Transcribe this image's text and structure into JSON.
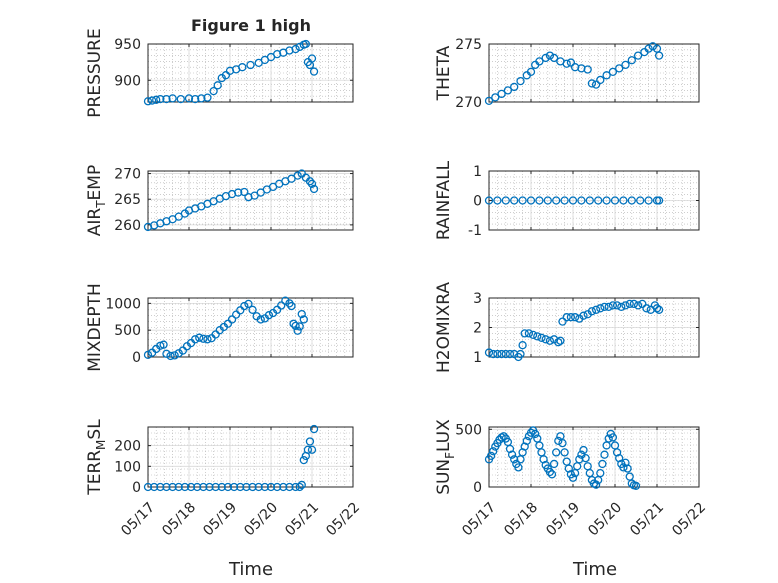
{
  "figure": {
    "title": "Figure 1 high",
    "xlabel": "Time"
  },
  "style": {
    "series_color": "#0072BD",
    "axis_color": "#262626",
    "grid_color": "#b0b0b0",
    "background": "#ffffff"
  },
  "chart_data": [
    {
      "type": "scatter",
      "title": "Figure 1 high",
      "ylabel": "PRESSURE",
      "ylabel_sub": "",
      "xlim": [
        0,
        5
      ],
      "ylim": [
        870,
        950
      ],
      "yticks": [
        900,
        950
      ],
      "xticks": [
        0,
        1,
        2,
        3,
        4,
        5
      ],
      "xticklabels": [],
      "grid": true,
      "minor_grid": true,
      "points": [
        [
          0,
          871
        ],
        [
          0.1,
          872
        ],
        [
          0.2,
          873
        ],
        [
          0.3,
          874
        ],
        [
          0.45,
          874
        ],
        [
          0.6,
          875
        ],
        [
          0.8,
          874
        ],
        [
          1,
          875
        ],
        [
          1.15,
          874
        ],
        [
          1.3,
          875
        ],
        [
          1.45,
          876
        ],
        [
          1.6,
          885
        ],
        [
          1.7,
          893
        ],
        [
          1.8,
          903
        ],
        [
          1.9,
          907
        ],
        [
          2.0,
          913
        ],
        [
          2.15,
          915
        ],
        [
          2.3,
          918
        ],
        [
          2.5,
          921
        ],
        [
          2.7,
          924
        ],
        [
          2.85,
          928
        ],
        [
          3.0,
          932
        ],
        [
          3.15,
          936
        ],
        [
          3.3,
          938
        ],
        [
          3.45,
          941
        ],
        [
          3.6,
          943
        ],
        [
          3.7,
          946
        ],
        [
          3.8,
          949
        ],
        [
          3.85,
          950
        ],
        [
          3.9,
          925
        ],
        [
          3.95,
          921
        ],
        [
          4.0,
          930
        ],
        [
          4.05,
          912
        ]
      ]
    },
    {
      "type": "scatter",
      "title": "",
      "ylabel": "THETA",
      "ylabel_sub": "",
      "xlim": [
        0,
        5
      ],
      "ylim": [
        270,
        275
      ],
      "yticks": [
        270,
        275
      ],
      "xticks": [
        0,
        1,
        2,
        3,
        4,
        5
      ],
      "xticklabels": [],
      "grid": true,
      "minor_grid": true,
      "points": [
        [
          0,
          270.1
        ],
        [
          0.15,
          270.4
        ],
        [
          0.3,
          270.7
        ],
        [
          0.45,
          271.0
        ],
        [
          0.6,
          271.3
        ],
        [
          0.75,
          271.8
        ],
        [
          0.9,
          272.3
        ],
        [
          1.0,
          272.6
        ],
        [
          1.1,
          273.2
        ],
        [
          1.2,
          273.5
        ],
        [
          1.35,
          273.8
        ],
        [
          1.45,
          274.0
        ],
        [
          1.55,
          273.8
        ],
        [
          1.7,
          273.5
        ],
        [
          1.85,
          273.3
        ],
        [
          1.95,
          273.4
        ],
        [
          2.05,
          273.0
        ],
        [
          2.2,
          272.9
        ],
        [
          2.35,
          272.8
        ],
        [
          2.45,
          271.6
        ],
        [
          2.55,
          271.5
        ],
        [
          2.65,
          271.9
        ],
        [
          2.8,
          272.3
        ],
        [
          2.95,
          272.6
        ],
        [
          3.1,
          272.9
        ],
        [
          3.25,
          273.2
        ],
        [
          3.4,
          273.6
        ],
        [
          3.55,
          274.0
        ],
        [
          3.7,
          274.3
        ],
        [
          3.8,
          274.6
        ],
        [
          3.9,
          274.8
        ],
        [
          4.0,
          274.6
        ],
        [
          4.05,
          274.0
        ]
      ]
    },
    {
      "type": "scatter",
      "title": "",
      "ylabel": "AIR",
      "ylabel_sub": "T",
      "ylabel_suffix": "EMP",
      "xlim": [
        0,
        5
      ],
      "ylim": [
        259,
        270.5
      ],
      "yticks": [
        260,
        265,
        270
      ],
      "xticks": [
        0,
        1,
        2,
        3,
        4,
        5
      ],
      "xticklabels": [],
      "grid": true,
      "minor_grid": true,
      "points": [
        [
          0,
          259.6
        ],
        [
          0.15,
          259.9
        ],
        [
          0.3,
          260.3
        ],
        [
          0.45,
          260.7
        ],
        [
          0.6,
          261.1
        ],
        [
          0.75,
          261.6
        ],
        [
          0.9,
          262.2
        ],
        [
          1.0,
          262.8
        ],
        [
          1.15,
          263.2
        ],
        [
          1.3,
          263.6
        ],
        [
          1.45,
          264.1
        ],
        [
          1.6,
          264.6
        ],
        [
          1.75,
          265.1
        ],
        [
          1.9,
          265.6
        ],
        [
          2.05,
          266.0
        ],
        [
          2.2,
          266.3
        ],
        [
          2.35,
          266.4
        ],
        [
          2.45,
          265.4
        ],
        [
          2.6,
          265.7
        ],
        [
          2.75,
          266.3
        ],
        [
          2.9,
          266.9
        ],
        [
          3.05,
          267.4
        ],
        [
          3.2,
          268.0
        ],
        [
          3.35,
          268.5
        ],
        [
          3.5,
          269.0
        ],
        [
          3.65,
          269.6
        ],
        [
          3.75,
          270.0
        ],
        [
          3.85,
          269.2
        ],
        [
          3.95,
          268.5
        ],
        [
          4.0,
          268.0
        ],
        [
          4.05,
          267.0
        ]
      ]
    },
    {
      "type": "scatter",
      "title": "",
      "ylabel": "RAINFALL",
      "ylabel_sub": "",
      "xlim": [
        0,
        5
      ],
      "ylim": [
        -1,
        1
      ],
      "yticks": [
        -1,
        0,
        1
      ],
      "xticks": [
        0,
        1,
        2,
        3,
        4,
        5
      ],
      "xticklabels": [],
      "grid": true,
      "minor_grid": true,
      "points": [
        [
          0,
          0
        ],
        [
          0.2,
          0
        ],
        [
          0.4,
          0
        ],
        [
          0.6,
          0
        ],
        [
          0.8,
          0
        ],
        [
          1.0,
          0
        ],
        [
          1.2,
          0
        ],
        [
          1.4,
          0
        ],
        [
          1.6,
          0
        ],
        [
          1.8,
          0
        ],
        [
          2.0,
          0
        ],
        [
          2.2,
          0
        ],
        [
          2.4,
          0
        ],
        [
          2.6,
          0
        ],
        [
          2.8,
          0
        ],
        [
          3.0,
          0
        ],
        [
          3.2,
          0
        ],
        [
          3.4,
          0
        ],
        [
          3.6,
          0
        ],
        [
          3.8,
          0
        ],
        [
          4.0,
          0
        ],
        [
          4.05,
          0
        ]
      ]
    },
    {
      "type": "scatter",
      "title": "",
      "ylabel": "MIXDEPTH",
      "ylabel_sub": "",
      "xlim": [
        0,
        5
      ],
      "ylim": [
        0,
        1100
      ],
      "yticks": [
        0,
        500,
        1000
      ],
      "xticks": [
        0,
        1,
        2,
        3,
        4,
        5
      ],
      "xticklabels": [],
      "grid": true,
      "minor_grid": true,
      "points": [
        [
          0,
          40
        ],
        [
          0.1,
          80
        ],
        [
          0.2,
          150
        ],
        [
          0.3,
          210
        ],
        [
          0.38,
          230
        ],
        [
          0.45,
          60
        ],
        [
          0.55,
          20
        ],
        [
          0.65,
          30
        ],
        [
          0.75,
          70
        ],
        [
          0.85,
          120
        ],
        [
          0.95,
          200
        ],
        [
          1.05,
          260
        ],
        [
          1.15,
          330
        ],
        [
          1.25,
          360
        ],
        [
          1.35,
          340
        ],
        [
          1.45,
          330
        ],
        [
          1.55,
          350
        ],
        [
          1.65,
          420
        ],
        [
          1.75,
          500
        ],
        [
          1.85,
          560
        ],
        [
          1.95,
          620
        ],
        [
          2.05,
          700
        ],
        [
          2.15,
          790
        ],
        [
          2.25,
          870
        ],
        [
          2.35,
          950
        ],
        [
          2.45,
          990
        ],
        [
          2.55,
          880
        ],
        [
          2.65,
          760
        ],
        [
          2.75,
          700
        ],
        [
          2.85,
          720
        ],
        [
          2.95,
          780
        ],
        [
          3.05,
          820
        ],
        [
          3.15,
          880
        ],
        [
          3.25,
          960
        ],
        [
          3.35,
          1050
        ],
        [
          3.45,
          1000
        ],
        [
          3.5,
          950
        ],
        [
          3.55,
          620
        ],
        [
          3.6,
          580
        ],
        [
          3.65,
          490
        ],
        [
          3.7,
          570
        ],
        [
          3.75,
          800
        ],
        [
          3.8,
          700
        ]
      ]
    },
    {
      "type": "scatter",
      "title": "",
      "ylabel": "H2OMIXRA",
      "ylabel_sub": "",
      "xlim": [
        0,
        5
      ],
      "ylim": [
        1,
        3
      ],
      "yticks": [
        1,
        2,
        3
      ],
      "xticks": [
        0,
        1,
        2,
        3,
        4,
        5
      ],
      "xticklabels": [],
      "grid": true,
      "minor_grid": true,
      "points": [
        [
          0,
          1.15
        ],
        [
          0.1,
          1.1
        ],
        [
          0.2,
          1.1
        ],
        [
          0.3,
          1.1
        ],
        [
          0.4,
          1.1
        ],
        [
          0.5,
          1.1
        ],
        [
          0.6,
          1.1
        ],
        [
          0.7,
          1.0
        ],
        [
          0.75,
          1.1
        ],
        [
          0.8,
          1.4
        ],
        [
          0.85,
          1.8
        ],
        [
          0.95,
          1.8
        ],
        [
          1.05,
          1.75
        ],
        [
          1.15,
          1.7
        ],
        [
          1.25,
          1.65
        ],
        [
          1.35,
          1.6
        ],
        [
          1.45,
          1.55
        ],
        [
          1.55,
          1.6
        ],
        [
          1.65,
          1.5
        ],
        [
          1.7,
          1.55
        ],
        [
          1.75,
          2.2
        ],
        [
          1.85,
          2.35
        ],
        [
          1.95,
          2.35
        ],
        [
          2.05,
          2.35
        ],
        [
          2.15,
          2.3
        ],
        [
          2.25,
          2.4
        ],
        [
          2.35,
          2.45
        ],
        [
          2.45,
          2.55
        ],
        [
          2.55,
          2.6
        ],
        [
          2.65,
          2.65
        ],
        [
          2.75,
          2.7
        ],
        [
          2.85,
          2.7
        ],
        [
          2.95,
          2.75
        ],
        [
          3.05,
          2.75
        ],
        [
          3.15,
          2.7
        ],
        [
          3.25,
          2.75
        ],
        [
          3.35,
          2.8
        ],
        [
          3.45,
          2.8
        ],
        [
          3.55,
          2.75
        ],
        [
          3.65,
          2.8
        ],
        [
          3.75,
          2.65
        ],
        [
          3.85,
          2.6
        ],
        [
          3.95,
          2.75
        ],
        [
          4.0,
          2.65
        ],
        [
          4.05,
          2.6
        ]
      ]
    },
    {
      "type": "scatter",
      "title": "",
      "ylabel": "TERR",
      "ylabel_sub": "M",
      "ylabel_suffix": "SL",
      "xlim": [
        0,
        5
      ],
      "ylim": [
        0,
        290
      ],
      "yticks": [
        0,
        100,
        200
      ],
      "xticks": [
        0,
        1,
        2,
        3,
        4,
        5
      ],
      "xticklabels": [
        "05/17",
        "05/18",
        "05/19",
        "05/20",
        "05/21",
        "05/22"
      ],
      "grid": true,
      "minor_grid": true,
      "points": [
        [
          0,
          0
        ],
        [
          0.15,
          0
        ],
        [
          0.3,
          0
        ],
        [
          0.45,
          0
        ],
        [
          0.6,
          0
        ],
        [
          0.75,
          0
        ],
        [
          0.9,
          0
        ],
        [
          1.05,
          0
        ],
        [
          1.2,
          0
        ],
        [
          1.35,
          0
        ],
        [
          1.5,
          0
        ],
        [
          1.65,
          0
        ],
        [
          1.8,
          0
        ],
        [
          1.95,
          0
        ],
        [
          2.1,
          0
        ],
        [
          2.25,
          0
        ],
        [
          2.4,
          0
        ],
        [
          2.55,
          0
        ],
        [
          2.7,
          0
        ],
        [
          2.85,
          0
        ],
        [
          3.0,
          0
        ],
        [
          3.15,
          0
        ],
        [
          3.3,
          0
        ],
        [
          3.45,
          0
        ],
        [
          3.6,
          0
        ],
        [
          3.7,
          0
        ],
        [
          3.75,
          10
        ],
        [
          3.8,
          130
        ],
        [
          3.85,
          150
        ],
        [
          3.9,
          180
        ],
        [
          3.95,
          220
        ],
        [
          4.0,
          180
        ],
        [
          4.05,
          280
        ]
      ]
    },
    {
      "type": "scatter",
      "title": "",
      "ylabel": "SUN",
      "ylabel_sub": "F",
      "ylabel_suffix": "LUX",
      "xlim": [
        0,
        5
      ],
      "ylim": [
        0,
        520
      ],
      "yticks": [
        0,
        500
      ],
      "xticks": [
        0,
        1,
        2,
        3,
        4,
        5
      ],
      "xticklabels": [
        "05/17",
        "05/18",
        "05/19",
        "05/20",
        "05/21",
        "05/22"
      ],
      "grid": true,
      "minor_grid": true,
      "points": [
        [
          0,
          240
        ],
        [
          0.05,
          270
        ],
        [
          0.1,
          310
        ],
        [
          0.15,
          350
        ],
        [
          0.2,
          380
        ],
        [
          0.25,
          410
        ],
        [
          0.3,
          430
        ],
        [
          0.35,
          440
        ],
        [
          0.4,
          420
        ],
        [
          0.45,
          390
        ],
        [
          0.5,
          330
        ],
        [
          0.55,
          280
        ],
        [
          0.6,
          240
        ],
        [
          0.65,
          200
        ],
        [
          0.7,
          170
        ],
        [
          0.75,
          240
        ],
        [
          0.8,
          300
        ],
        [
          0.85,
          350
        ],
        [
          0.9,
          400
        ],
        [
          0.95,
          440
        ],
        [
          1.0,
          470
        ],
        [
          1.05,
          490
        ],
        [
          1.1,
          460
        ],
        [
          1.15,
          420
        ],
        [
          1.2,
          360
        ],
        [
          1.25,
          300
        ],
        [
          1.3,
          240
        ],
        [
          1.35,
          190
        ],
        [
          1.4,
          160
        ],
        [
          1.45,
          130
        ],
        [
          1.5,
          110
        ],
        [
          1.55,
          200
        ],
        [
          1.6,
          300
        ],
        [
          1.65,
          400
        ],
        [
          1.7,
          440
        ],
        [
          1.75,
          380
        ],
        [
          1.8,
          300
        ],
        [
          1.85,
          220
        ],
        [
          1.9,
          160
        ],
        [
          1.95,
          110
        ],
        [
          2.0,
          80
        ],
        [
          2.05,
          120
        ],
        [
          2.1,
          180
        ],
        [
          2.15,
          240
        ],
        [
          2.2,
          280
        ],
        [
          2.25,
          320
        ],
        [
          2.3,
          250
        ],
        [
          2.35,
          180
        ],
        [
          2.4,
          120
        ],
        [
          2.45,
          60
        ],
        [
          2.5,
          30
        ],
        [
          2.55,
          20
        ],
        [
          2.6,
          60
        ],
        [
          2.65,
          120
        ],
        [
          2.7,
          200
        ],
        [
          2.75,
          280
        ],
        [
          2.8,
          360
        ],
        [
          2.85,
          420
        ],
        [
          2.9,
          460
        ],
        [
          2.95,
          430
        ],
        [
          3.0,
          360
        ],
        [
          3.05,
          300
        ],
        [
          3.1,
          250
        ],
        [
          3.15,
          200
        ],
        [
          3.2,
          170
        ],
        [
          3.25,
          210
        ],
        [
          3.3,
          160
        ],
        [
          3.35,
          90
        ],
        [
          3.4,
          30
        ],
        [
          3.45,
          15
        ],
        [
          3.5,
          10
        ]
      ]
    }
  ]
}
